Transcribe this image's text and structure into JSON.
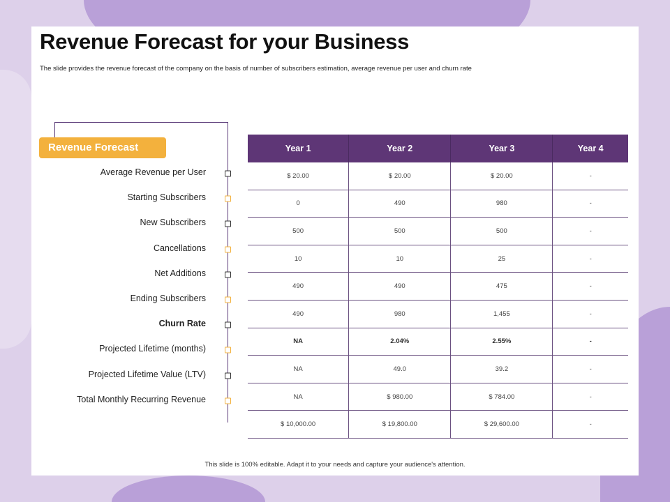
{
  "title": "Revenue Forecast for your Business",
  "subtitle": "The slide provides the revenue forecast of the company on the basis of number  of subscribers estimation,  average revenue per user and churn rate",
  "badge": "Revenue Forecast",
  "footer": "This slide is 100% editable.  Adapt it to your needs and capture your audience's attention.",
  "colors": {
    "header": "#5e3676",
    "badge": "#f3b13d",
    "background": "#ddd0ea"
  },
  "table": {
    "columns": [
      "Year 1",
      "Year 2",
      "Year 3",
      "Year 4"
    ],
    "rows": [
      {
        "label": "Average  Revenue  per User",
        "values": [
          "$ 20.00",
          "$ 20.00",
          "$ 20.00",
          "-"
        ]
      },
      {
        "label": "Starting Subscribers",
        "values": [
          "0",
          "490",
          "980",
          "-"
        ]
      },
      {
        "label": "New Subscribers",
        "values": [
          "500",
          "500",
          "500",
          "-"
        ]
      },
      {
        "label": "Cancellations",
        "values": [
          "10",
          "10",
          "25",
          "-"
        ]
      },
      {
        "label": "Net Additions",
        "values": [
          "490",
          "490",
          "475",
          "-"
        ]
      },
      {
        "label": "Ending Subscribers",
        "values": [
          "490",
          "980",
          "1,455",
          "-"
        ]
      },
      {
        "label": "Churn Rate",
        "bold": true,
        "values": [
          "NA",
          "2.04%",
          "2.55%",
          "-"
        ]
      },
      {
        "label": "Projected Lifetime (months)",
        "values": [
          "NA",
          "49.0",
          "39.2",
          "-"
        ]
      },
      {
        "label": "Projected Lifetime  Value (LTV)",
        "values": [
          "NA",
          "$ 980.00",
          "$ 784.00",
          "-"
        ]
      },
      {
        "label": "Total Monthly Recurring Revenue",
        "values": [
          "$ 10,000.00",
          "$ 19,800.00",
          "$ 29,600.00",
          "-"
        ]
      }
    ]
  }
}
